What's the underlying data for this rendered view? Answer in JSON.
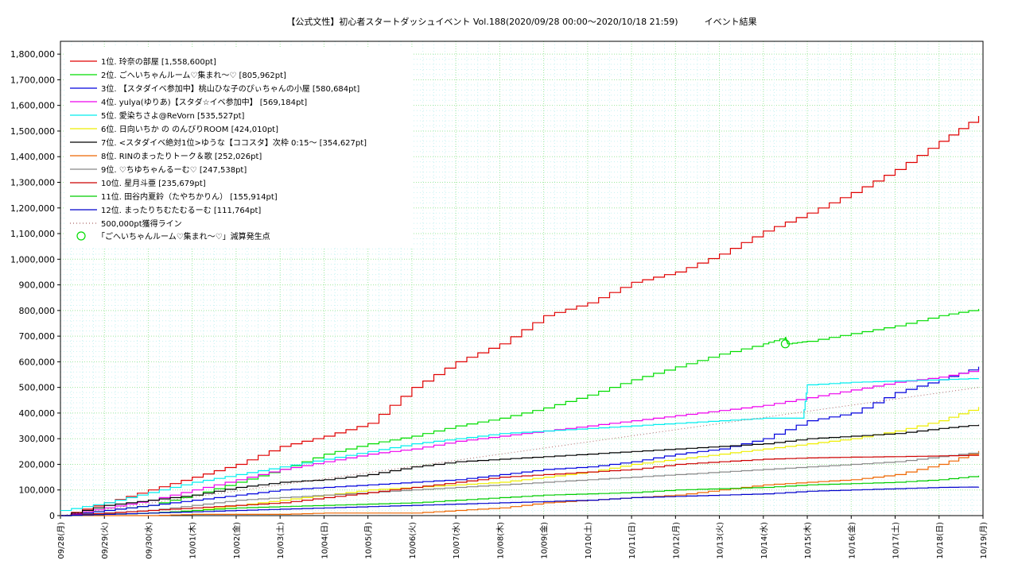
{
  "chart_data": {
    "type": "line",
    "title": "【公式文性】初心者スタートダッシュイベント Vol.188(2020/09/28 00:00〜2020/10/18 21:59)　　　イベント結果",
    "xlabel": "",
    "ylabel": "",
    "ylim": [
      0,
      1850000
    ],
    "xlim": [
      0,
      21
    ],
    "grid": true,
    "legend_position": "top-left",
    "y_ticks": [
      "0",
      "100,000",
      "200,000",
      "300,000",
      "400,000",
      "500,000",
      "600,000",
      "700,000",
      "800,000",
      "900,000",
      "1,000,000",
      "1,100,000",
      "1,200,000",
      "1,300,000",
      "1,400,000",
      "1,500,000",
      "1,600,000",
      "1,700,000",
      "1,800,000"
    ],
    "x_ticks": [
      "09/28(月)",
      "09/29(火)",
      "09/30(水)",
      "10/01(木)",
      "10/02(金)",
      "10/03(土)",
      "10/04(日)",
      "10/05(月)",
      "10/06(火)",
      "10/07(水)",
      "10/08(木)",
      "10/09(金)",
      "10/10(土)",
      "10/11(日)",
      "10/12(月)",
      "10/13(火)",
      "10/14(水)",
      "10/15(木)",
      "10/16(金)",
      "10/17(土)",
      "10/18(日)",
      "10/19(月)"
    ],
    "series": [
      {
        "name": "1位. 玲奈の部屋 [1,558,600pt]",
        "color": "#e00000",
        "x": [
          0,
          1,
          2,
          3,
          4,
          5,
          6,
          7,
          8,
          9,
          10,
          11,
          12,
          13,
          14,
          15,
          16,
          17,
          18,
          19,
          20,
          20.9
        ],
        "y": [
          0,
          50000,
          100000,
          150000,
          200000,
          270000,
          310000,
          360000,
          500000,
          600000,
          670000,
          780000,
          830000,
          910000,
          950000,
          1020000,
          1110000,
          1180000,
          1260000,
          1350000,
          1460000,
          1558600
        ]
      },
      {
        "name": "2位. ごへいちゃんルーム♡集まれ〜♡ [805,962pt]",
        "color": "#00dd00",
        "x": [
          0,
          1,
          2,
          3,
          4,
          5,
          6,
          7,
          8,
          9,
          10,
          11,
          12,
          13,
          14,
          15,
          16,
          16.5,
          16.55,
          17,
          18,
          19,
          20,
          20.9
        ],
        "y": [
          0,
          20000,
          40000,
          80000,
          130000,
          180000,
          240000,
          280000,
          310000,
          350000,
          380000,
          420000,
          470000,
          530000,
          580000,
          630000,
          670000,
          695000,
          670000,
          680000,
          710000,
          740000,
          780000,
          805962
        ]
      },
      {
        "name": "3位. 【スタダイベ参加中】桃山ひな子のぴぃちゃんの小屋 [580,684pt]",
        "color": "#0000dd",
        "x": [
          0,
          1,
          2,
          3,
          4,
          5,
          6,
          7,
          8,
          9,
          10,
          11,
          12,
          13,
          14,
          15,
          16,
          17,
          18,
          19,
          20,
          20.9
        ],
        "y": [
          0,
          20000,
          40000,
          60000,
          80000,
          100000,
          110000,
          120000,
          130000,
          140000,
          160000,
          180000,
          190000,
          210000,
          240000,
          260000,
          300000,
          370000,
          400000,
          480000,
          530000,
          580684
        ]
      },
      {
        "name": "4位. yulya(ゆりあ)【スタダ☆イベ参加中】 [569,184pt]",
        "color": "#ee00ee",
        "x": [
          0,
          1,
          2,
          3,
          4,
          5,
          6,
          7,
          8,
          9,
          10,
          11,
          12,
          13,
          14,
          15,
          16,
          17,
          18,
          19,
          20,
          20.9
        ],
        "y": [
          0,
          30000,
          60000,
          100000,
          140000,
          180000,
          210000,
          240000,
          260000,
          290000,
          310000,
          330000,
          350000,
          370000,
          390000,
          410000,
          430000,
          460000,
          490000,
          520000,
          540000,
          569184
        ]
      },
      {
        "name": "5位. 愛染ちさよ@ReVorn [535,527pt]",
        "color": "#00eeee",
        "x": [
          0,
          1,
          2,
          3,
          4,
          5,
          6,
          7,
          8,
          9,
          10,
          11,
          12,
          13,
          14,
          15,
          16,
          16.9,
          17,
          18,
          19,
          20,
          20.9
        ],
        "y": [
          20000,
          50000,
          90000,
          130000,
          160000,
          190000,
          220000,
          250000,
          280000,
          300000,
          320000,
          330000,
          340000,
          350000,
          360000,
          370000,
          380000,
          380000,
          510000,
          520000,
          525000,
          530000,
          535527
        ]
      },
      {
        "name": "6位. 日向いちか の のんびりROOM [424,010pt]",
        "color": "#eeee00",
        "x": [
          0,
          1,
          2,
          3,
          4,
          5,
          6,
          7,
          8,
          9,
          10,
          11,
          12,
          13,
          14,
          15,
          16,
          17,
          18,
          19,
          20,
          20.9
        ],
        "y": [
          0,
          5000,
          10000,
          20000,
          40000,
          60000,
          80000,
          100000,
          110000,
          120000,
          130000,
          150000,
          170000,
          200000,
          220000,
          240000,
          260000,
          280000,
          300000,
          330000,
          370000,
          424010
        ]
      },
      {
        "name": "7位. <スタダイベ絶対1位>ゆうな【ココスタ】次枠 0:15〜 [354,627pt]",
        "color": "#000000",
        "x": [
          0,
          1,
          2,
          3,
          4,
          5,
          6,
          7,
          8,
          9,
          10,
          11,
          12,
          13,
          14,
          15,
          16,
          17,
          18,
          19,
          20,
          20.9
        ],
        "y": [
          0,
          40000,
          60000,
          80000,
          110000,
          130000,
          140000,
          160000,
          190000,
          210000,
          220000,
          230000,
          240000,
          250000,
          260000,
          270000,
          280000,
          300000,
          310000,
          320000,
          340000,
          354627
        ]
      },
      {
        "name": "8位. RINのまったりトーク＆歌 [252,026pt]",
        "color": "#ee6600",
        "x": [
          0,
          1,
          2,
          3,
          4,
          5,
          6,
          7,
          8,
          9,
          10,
          11,
          12,
          13,
          14,
          15,
          16,
          17,
          18,
          19,
          20,
          20.9
        ],
        "y": [
          0,
          0,
          0,
          5000,
          5000,
          5000,
          10000,
          10000,
          10000,
          20000,
          30000,
          50000,
          60000,
          70000,
          80000,
          100000,
          120000,
          130000,
          140000,
          160000,
          200000,
          252026
        ]
      },
      {
        "name": "9位. ♡ちゆちゃんるーむ♡ [247,538pt]",
        "color": "#888888",
        "x": [
          0,
          1,
          2,
          3,
          4,
          5,
          6,
          7,
          8,
          9,
          10,
          11,
          12,
          13,
          14,
          15,
          16,
          17,
          18,
          19,
          20,
          20.9
        ],
        "y": [
          0,
          10000,
          20000,
          40000,
          60000,
          70000,
          80000,
          90000,
          100000,
          110000,
          120000,
          130000,
          140000,
          150000,
          160000,
          170000,
          180000,
          190000,
          200000,
          210000,
          230000,
          247538
        ]
      },
      {
        "name": "10位. 星月斗亜 [235,679pt]",
        "color": "#cc0000",
        "x": [
          0,
          1,
          2,
          3,
          4,
          5,
          6,
          7,
          8,
          9,
          10,
          11,
          12,
          13,
          14,
          15,
          16,
          17,
          18,
          19,
          20,
          20.9
        ],
        "y": [
          0,
          10000,
          20000,
          30000,
          40000,
          50000,
          70000,
          90000,
          110000,
          130000,
          150000,
          160000,
          170000,
          180000,
          200000,
          210000,
          220000,
          225000,
          228000,
          230000,
          233000,
          235679
        ]
      },
      {
        "name": "11位. 田谷内夏鈴（たやちかりん） [155,914pt]",
        "color": "#00cc00",
        "x": [
          0,
          1,
          2,
          3,
          4,
          5,
          6,
          7,
          8,
          9,
          10,
          11,
          12,
          13,
          14,
          15,
          16,
          17,
          18,
          19,
          20,
          20.9
        ],
        "y": [
          0,
          5000,
          10000,
          20000,
          30000,
          35000,
          40000,
          45000,
          50000,
          60000,
          70000,
          80000,
          85000,
          90000,
          100000,
          105000,
          110000,
          120000,
          125000,
          130000,
          140000,
          155914
        ]
      },
      {
        "name": "12位. まったりちむたむるーむ [111,764pt]",
        "color": "#0000cc",
        "x": [
          0,
          1,
          2,
          3,
          4,
          5,
          6,
          7,
          8,
          9,
          10,
          11,
          12,
          13,
          14,
          15,
          16,
          17,
          18,
          19,
          20,
          20.9
        ],
        "y": [
          0,
          5000,
          10000,
          15000,
          20000,
          25000,
          30000,
          35000,
          40000,
          45000,
          50000,
          55000,
          60000,
          70000,
          75000,
          80000,
          85000,
          95000,
          100000,
          105000,
          110000,
          111764
        ]
      },
      {
        "name": "500,000pt獲得ライン",
        "color": "#aa6666",
        "dotted": true,
        "x": [
          0,
          20.9
        ],
        "y": [
          0,
          500000
        ]
      }
    ],
    "annotation": {
      "label": "「ごへいちゃんルーム♡集まれ〜♡」減算発生点",
      "color": "#00dd00",
      "x": 16.5,
      "y": 670000
    }
  }
}
